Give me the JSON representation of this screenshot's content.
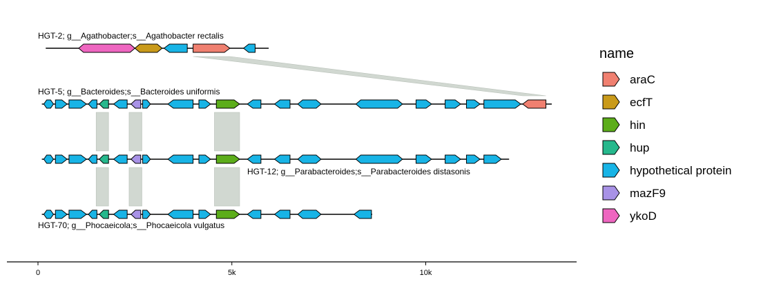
{
  "chart_data": {
    "type": "gene_arrow_map",
    "x_axis": {
      "ticks": [
        {
          "value": 0,
          "label": "0"
        },
        {
          "value": 5000,
          "label": "5k"
        },
        {
          "value": 10000,
          "label": "10k"
        }
      ]
    },
    "legend": {
      "title": "name",
      "entries": [
        {
          "name": "araC",
          "color": "#f08070"
        },
        {
          "name": "ecfT",
          "color": "#c99a1a"
        },
        {
          "name": "hin",
          "color": "#5cad1a"
        },
        {
          "name": "hup",
          "color": "#26b88c"
        },
        {
          "name": "hypothetical protein",
          "color": "#18b4e6"
        },
        {
          "name": "mazF9",
          "color": "#a892e6"
        },
        {
          "name": "ykoD",
          "color": "#ee66c0"
        }
      ]
    },
    "tracks": [
      {
        "label": "HGT-2; g__Agathobacter;s__Agathobacter rectalis",
        "label_pos": "above",
        "start": 200,
        "end": 5950,
        "genes": [
          {
            "start": 1050,
            "end": 2500,
            "gene": "ykoD",
            "strand": "both"
          },
          {
            "start": 2500,
            "end": 3200,
            "gene": "ecfT",
            "strand": "both"
          },
          {
            "start": 3250,
            "end": 3850,
            "gene": "hypothetical protein",
            "strand": "-"
          },
          {
            "start": 4000,
            "end": 4950,
            "gene": "araC",
            "strand": "+"
          },
          {
            "start": 5300,
            "end": 5600,
            "gene": "hypothetical protein",
            "strand": "-"
          }
        ]
      },
      {
        "label": "HGT-5; g__Bacteroides;s__Bacteroides uniformis",
        "label_pos": "above",
        "start": 100,
        "end": 13250,
        "genes": [
          {
            "start": 150,
            "end": 400,
            "gene": "hypothetical protein",
            "strand": "both"
          },
          {
            "start": 450,
            "end": 750,
            "gene": "hypothetical protein",
            "strand": "+"
          },
          {
            "start": 800,
            "end": 1250,
            "gene": "hypothetical protein",
            "strand": "+"
          },
          {
            "start": 1300,
            "end": 1520,
            "gene": "hypothetical protein",
            "strand": "-"
          },
          {
            "start": 1580,
            "end": 1820,
            "gene": "hup",
            "strand": "-"
          },
          {
            "start": 1950,
            "end": 2300,
            "gene": "hypothetical protein",
            "strand": "-"
          },
          {
            "start": 2400,
            "end": 2650,
            "gene": "mazF9",
            "strand": "-"
          },
          {
            "start": 2700,
            "end": 2900,
            "gene": "hypothetical protein",
            "strand": "+"
          },
          {
            "start": 3350,
            "end": 4000,
            "gene": "hypothetical protein",
            "strand": "-"
          },
          {
            "start": 4150,
            "end": 4450,
            "gene": "hypothetical protein",
            "strand": "+"
          },
          {
            "start": 4600,
            "end": 5200,
            "gene": "hin",
            "strand": "+"
          },
          {
            "start": 5400,
            "end": 5750,
            "gene": "hypothetical protein",
            "strand": "-"
          },
          {
            "start": 6100,
            "end": 6500,
            "gene": "hypothetical protein",
            "strand": "-"
          },
          {
            "start": 6700,
            "end": 7300,
            "gene": "hypothetical protein",
            "strand": "both"
          },
          {
            "start": 8200,
            "end": 9400,
            "gene": "hypothetical protein",
            "strand": "both"
          },
          {
            "start": 9750,
            "end": 10150,
            "gene": "hypothetical protein",
            "strand": "+"
          },
          {
            "start": 10500,
            "end": 10900,
            "gene": "hypothetical protein",
            "strand": "+"
          },
          {
            "start": 11050,
            "end": 11400,
            "gene": "hypothetical protein",
            "strand": "+"
          },
          {
            "start": 11500,
            "end": 12450,
            "gene": "hypothetical protein",
            "strand": "+"
          },
          {
            "start": 12500,
            "end": 13100,
            "gene": "araC",
            "strand": "-"
          }
        ]
      },
      {
        "label": "HGT-12; g__Parabacteroides;s__Parabacteroides distasonis",
        "label_pos": "below_right",
        "start": 100,
        "end": 12150,
        "genes": [
          {
            "start": 150,
            "end": 400,
            "gene": "hypothetical protein",
            "strand": "both"
          },
          {
            "start": 450,
            "end": 750,
            "gene": "hypothetical protein",
            "strand": "+"
          },
          {
            "start": 800,
            "end": 1250,
            "gene": "hypothetical protein",
            "strand": "+"
          },
          {
            "start": 1300,
            "end": 1520,
            "gene": "hypothetical protein",
            "strand": "-"
          },
          {
            "start": 1580,
            "end": 1820,
            "gene": "hup",
            "strand": "-"
          },
          {
            "start": 1950,
            "end": 2300,
            "gene": "hypothetical protein",
            "strand": "-"
          },
          {
            "start": 2400,
            "end": 2650,
            "gene": "mazF9",
            "strand": "-"
          },
          {
            "start": 2700,
            "end": 2900,
            "gene": "hypothetical protein",
            "strand": "+"
          },
          {
            "start": 3350,
            "end": 4000,
            "gene": "hypothetical protein",
            "strand": "-"
          },
          {
            "start": 4150,
            "end": 4450,
            "gene": "hypothetical protein",
            "strand": "+"
          },
          {
            "start": 4600,
            "end": 5200,
            "gene": "hin",
            "strand": "+"
          },
          {
            "start": 5400,
            "end": 5750,
            "gene": "hypothetical protein",
            "strand": "-"
          },
          {
            "start": 6100,
            "end": 6500,
            "gene": "hypothetical protein",
            "strand": "-"
          },
          {
            "start": 6700,
            "end": 7300,
            "gene": "hypothetical protein",
            "strand": "both"
          },
          {
            "start": 8200,
            "end": 9400,
            "gene": "hypothetical protein",
            "strand": "both"
          },
          {
            "start": 9750,
            "end": 10150,
            "gene": "hypothetical protein",
            "strand": "+"
          },
          {
            "start": 10500,
            "end": 10900,
            "gene": "hypothetical protein",
            "strand": "+"
          },
          {
            "start": 11050,
            "end": 11400,
            "gene": "hypothetical protein",
            "strand": "+"
          },
          {
            "start": 11500,
            "end": 11950,
            "gene": "hypothetical protein",
            "strand": "+"
          }
        ]
      },
      {
        "label": "HGT-70; g__Phocaeicola;s__Phocaeicola vulgatus",
        "label_pos": "below",
        "start": 100,
        "end": 8620,
        "genes": [
          {
            "start": 150,
            "end": 400,
            "gene": "hypothetical protein",
            "strand": "both"
          },
          {
            "start": 450,
            "end": 750,
            "gene": "hypothetical protein",
            "strand": "+"
          },
          {
            "start": 800,
            "end": 1250,
            "gene": "hypothetical protein",
            "strand": "+"
          },
          {
            "start": 1300,
            "end": 1520,
            "gene": "hypothetical protein",
            "strand": "-"
          },
          {
            "start": 1580,
            "end": 1820,
            "gene": "hup",
            "strand": "-"
          },
          {
            "start": 1950,
            "end": 2300,
            "gene": "hypothetical protein",
            "strand": "-"
          },
          {
            "start": 2400,
            "end": 2650,
            "gene": "mazF9",
            "strand": "-"
          },
          {
            "start": 2700,
            "end": 2900,
            "gene": "hypothetical protein",
            "strand": "+"
          },
          {
            "start": 3350,
            "end": 4000,
            "gene": "hypothetical protein",
            "strand": "-"
          },
          {
            "start": 4150,
            "end": 4450,
            "gene": "hypothetical protein",
            "strand": "+"
          },
          {
            "start": 4600,
            "end": 5200,
            "gene": "hin",
            "strand": "+"
          },
          {
            "start": 5400,
            "end": 5750,
            "gene": "hypothetical protein",
            "strand": "-"
          },
          {
            "start": 6100,
            "end": 6500,
            "gene": "hypothetical protein",
            "strand": "-"
          },
          {
            "start": 6700,
            "end": 7300,
            "gene": "hypothetical protein",
            "strand": "both"
          },
          {
            "start": 8150,
            "end": 8600,
            "gene": "hypothetical protein",
            "strand": "-"
          }
        ]
      }
    ],
    "links": [
      {
        "from_track": 0,
        "to_track": 1,
        "from": [
          4000,
          4950
        ],
        "to": [
          12500,
          13100
        ]
      },
      {
        "from_track": 1,
        "to_track": 2,
        "from": [
          1500,
          1820
        ],
        "to": [
          1500,
          1820
        ]
      },
      {
        "from_track": 1,
        "to_track": 2,
        "from": [
          2350,
          2680
        ],
        "to": [
          2350,
          2680
        ]
      },
      {
        "from_track": 1,
        "to_track": 2,
        "from": [
          4550,
          5200
        ],
        "to": [
          4550,
          5200
        ]
      },
      {
        "from_track": 2,
        "to_track": 3,
        "from": [
          1500,
          1820
        ],
        "to": [
          1500,
          1820
        ]
      },
      {
        "from_track": 2,
        "to_track": 3,
        "from": [
          2350,
          2680
        ],
        "to": [
          2350,
          2680
        ]
      },
      {
        "from_track": 2,
        "to_track": 3,
        "from": [
          4550,
          5200
        ],
        "to": [
          4550,
          5200
        ]
      }
    ]
  }
}
